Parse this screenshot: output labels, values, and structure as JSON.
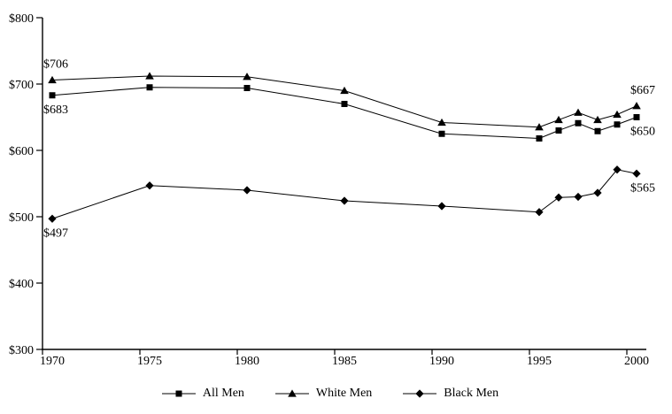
{
  "chart_data": {
    "type": "line",
    "title": "",
    "xlabel": "",
    "ylabel": "",
    "x": [
      1970,
      1975,
      1980,
      1985,
      1990,
      1995,
      1996,
      1997,
      1998,
      1999,
      2000
    ],
    "series": [
      {
        "name": "All Men",
        "marker": "square",
        "values": [
          683,
          695,
          694,
          670,
          625,
          618,
          630,
          641,
          629,
          639,
          650
        ]
      },
      {
        "name": "White Men",
        "marker": "triangle",
        "values": [
          706,
          712,
          711,
          690,
          642,
          635,
          646,
          657,
          646,
          654,
          667
        ]
      },
      {
        "name": "Black Men",
        "marker": "diamond",
        "values": [
          497,
          547,
          540,
          524,
          516,
          507,
          529,
          530,
          536,
          571,
          565
        ]
      }
    ],
    "ylim": [
      300,
      800
    ],
    "xlim_years": [
      1970,
      2000
    ],
    "yticks": [
      {
        "value": 300,
        "label": "$300"
      },
      {
        "value": 400,
        "label": "$400"
      },
      {
        "value": 500,
        "label": "$500"
      },
      {
        "value": 600,
        "label": "$600"
      },
      {
        "value": 700,
        "label": "$700"
      },
      {
        "value": 800,
        "label": "$800"
      }
    ],
    "xticks": [
      {
        "year": 1970,
        "label": "1970"
      },
      {
        "year": 1975,
        "label": "1975"
      },
      {
        "year": 1980,
        "label": "1980"
      },
      {
        "year": 1985,
        "label": "1985"
      },
      {
        "year": 1990,
        "label": "1990"
      },
      {
        "year": 1995,
        "label": "1995"
      },
      {
        "year": 2000,
        "label": "2000"
      }
    ],
    "grid": false,
    "legend_position": "bottom",
    "line_color": "#000000",
    "background": "#ffffff",
    "annotations": [
      {
        "text": "$706",
        "series": "White Men",
        "point": "first",
        "side": "above"
      },
      {
        "text": "$683",
        "series": "All Men",
        "point": "first",
        "side": "below"
      },
      {
        "text": "$497",
        "series": "Black Men",
        "point": "first",
        "side": "below"
      },
      {
        "text": "$667",
        "series": "White Men",
        "point": "last",
        "side": "above"
      },
      {
        "text": "$650",
        "series": "All Men",
        "point": "last",
        "side": "below"
      },
      {
        "text": "$565",
        "series": "Black Men",
        "point": "last",
        "side": "below"
      }
    ]
  }
}
